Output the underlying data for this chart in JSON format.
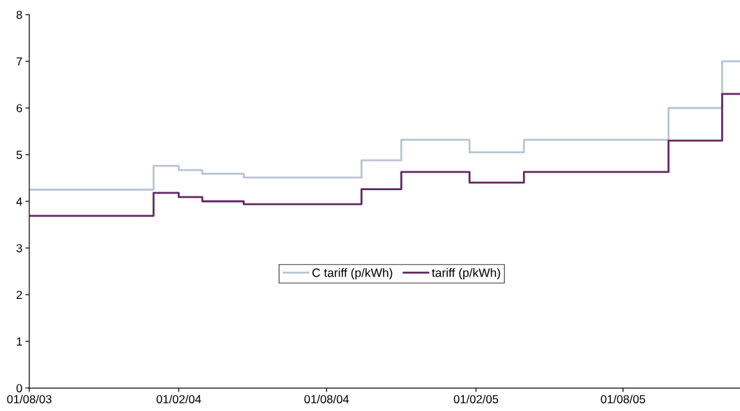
{
  "chart_data": {
    "type": "step",
    "x": [
      "2003-08-01",
      "2004-01-01",
      "2004-02-01",
      "2004-03-01",
      "2004-04-21",
      "2004-09-13",
      "2004-11-01",
      "2005-01-24",
      "2005-04-01",
      "2005-09-26",
      "2005-12-01",
      "2005-12-23"
    ],
    "series": [
      {
        "name": "C tariff (p/kWh)",
        "color": "#bcc4d4",
        "values": [
          4.25,
          4.76,
          4.67,
          4.59,
          4.51,
          4.88,
          5.32,
          5.05,
          5.32,
          6.0,
          7.0,
          7.0
        ]
      },
      {
        "name": "tariff (p/kWh)",
        "color": "#622a62",
        "values": [
          3.69,
          4.18,
          4.09,
          4.0,
          3.94,
          4.26,
          4.63,
          4.4,
          4.63,
          5.3,
          6.3,
          6.3
        ]
      }
    ],
    "xlim": [
      "2003-08-01",
      "2005-12-23"
    ],
    "xticks": [
      {
        "value": "2003-08-01",
        "label": "01/08/03"
      },
      {
        "value": "2004-02-01",
        "label": "01/02/04"
      },
      {
        "value": "2004-08-01",
        "label": "01/08/04"
      },
      {
        "value": "2005-02-01",
        "label": "01/02/05"
      },
      {
        "value": "2005-08-01",
        "label": "01/08/05"
      }
    ],
    "ylim": [
      0,
      8
    ],
    "yticks": [
      0,
      1,
      2,
      3,
      4,
      5,
      6,
      7,
      8
    ],
    "grid": false,
    "legend": "center",
    "marker": "none",
    "line_style": "solid"
  }
}
